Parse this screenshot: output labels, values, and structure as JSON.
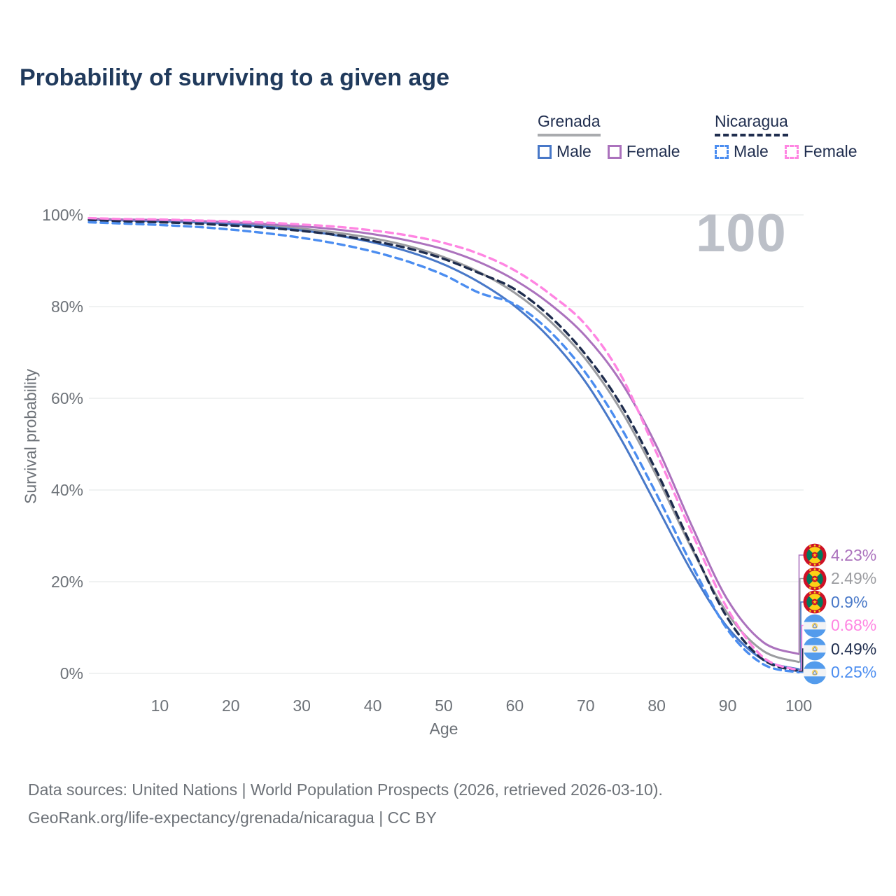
{
  "title": "Probability of surviving to a given age",
  "watermark": "100",
  "legend": {
    "groups": [
      {
        "country": "Grenada",
        "underline": "solid",
        "underline_color": "#a9abae",
        "items": [
          {
            "label": "Male",
            "color": "#4878c8",
            "dashed": false
          },
          {
            "label": "Female",
            "color": "#ab72bd",
            "dashed": false
          }
        ]
      },
      {
        "country": "Nicaragua",
        "underline": "dashed",
        "underline_color": "#1f2d4e",
        "items": [
          {
            "label": "Male",
            "color": "#4b8df0",
            "dashed": true
          },
          {
            "label": "Female",
            "color": "#ff85e2",
            "dashed": true
          }
        ]
      }
    ]
  },
  "y_axis": {
    "title": "Survival probability",
    "ticks": [
      {
        "label": "100%",
        "value": 100
      },
      {
        "label": "80%",
        "value": 80
      },
      {
        "label": "60%",
        "value": 60
      },
      {
        "label": "40%",
        "value": 40
      },
      {
        "label": "20%",
        "value": 20
      },
      {
        "label": "0%",
        "value": 0
      }
    ]
  },
  "x_axis": {
    "title": "Age",
    "ticks": [
      {
        "label": "10",
        "value": 10
      },
      {
        "label": "20",
        "value": 20
      },
      {
        "label": "30",
        "value": 30
      },
      {
        "label": "40",
        "value": 40
      },
      {
        "label": "50",
        "value": 50
      },
      {
        "label": "60",
        "value": 60
      },
      {
        "label": "70",
        "value": 70
      },
      {
        "label": "80",
        "value": 80
      },
      {
        "label": "90",
        "value": 90
      },
      {
        "label": "100",
        "value": 100
      }
    ]
  },
  "end_labels": [
    {
      "flag": "grenada",
      "series": "Grenada Female",
      "value": "4.23%",
      "numeric": 4.23,
      "color": "#ab72bd"
    },
    {
      "flag": "grenada",
      "series": "Grenada Both sexes",
      "value": "2.49%",
      "numeric": 2.49,
      "color": "#9b9ca0"
    },
    {
      "flag": "grenada",
      "series": "Grenada Male",
      "value": "0.9%",
      "numeric": 0.9,
      "color": "#4878c8"
    },
    {
      "flag": "nicaragua",
      "series": "Nicaragua Female",
      "value": "0.68%",
      "numeric": 0.68,
      "color": "#ff85e2"
    },
    {
      "flag": "nicaragua",
      "series": "Nicaragua Both sexes",
      "value": "0.49%",
      "numeric": 0.49,
      "color": "#1f2d4e"
    },
    {
      "flag": "nicaragua",
      "series": "Nicaragua Male",
      "value": "0.25%",
      "numeric": 0.25,
      "color": "#4b8df0"
    }
  ],
  "source": {
    "line1": "Data sources: United Nations | World Population Prospects (2026, retrieved 2026-03-10).",
    "line2": "GeoRank.org/life-expectancy/grenada/nicaragua | CC BY"
  },
  "colors": {
    "title_text": "#203a5c",
    "axis_text": "#6d7278",
    "legend_text": "#1f2d4e",
    "gridline": "#e8e9eb",
    "watermark": "#bcc0c8"
  },
  "chart_data": {
    "type": "line",
    "title": "Probability of surviving to a given age",
    "xlabel": "Age",
    "ylabel": "Survival probability",
    "x_range": [
      0,
      100
    ],
    "y_range_percent": [
      0,
      100
    ],
    "grid": "horizontal",
    "legend_position": "top-right",
    "x": [
      0,
      5,
      10,
      15,
      20,
      25,
      30,
      35,
      40,
      45,
      50,
      55,
      60,
      65,
      70,
      75,
      80,
      85,
      90,
      95,
      100
    ],
    "series": [
      {
        "name": "Grenada Female",
        "country": "Grenada",
        "sex": "Female",
        "color": "#ab72bd",
        "dash": "solid",
        "end_value": 4.23,
        "values": [
          99.2,
          99.0,
          98.9,
          98.7,
          98.4,
          98.0,
          97.5,
          96.8,
          95.8,
          94.4,
          92.5,
          89.7,
          85.8,
          80.5,
          73.5,
          63.5,
          49.5,
          32.0,
          16.0,
          6.8,
          4.23
        ]
      },
      {
        "name": "Grenada Both sexes",
        "country": "Grenada",
        "sex": "Both",
        "color": "#9b9ca0",
        "dash": "solid",
        "end_value": 2.49,
        "values": [
          99.1,
          98.9,
          98.8,
          98.6,
          98.2,
          97.7,
          97.0,
          96.1,
          94.9,
          93.2,
          90.8,
          87.5,
          83.0,
          76.8,
          68.5,
          57.3,
          43.0,
          27.0,
          13.0,
          4.9,
          2.49
        ]
      },
      {
        "name": "Grenada Male",
        "country": "Grenada",
        "sex": "Male",
        "color": "#4878c8",
        "dash": "solid",
        "end_value": 0.9,
        "values": [
          99.0,
          98.8,
          98.6,
          98.4,
          98.0,
          97.4,
          96.6,
          95.5,
          94.0,
          92.0,
          89.2,
          85.3,
          80.1,
          73.0,
          63.5,
          51.0,
          36.5,
          22.0,
          10.0,
          3.0,
          0.9
        ]
      },
      {
        "name": "Nicaragua Female",
        "country": "Nicaragua",
        "sex": "Female",
        "color": "#ff85e2",
        "dash": "dashed",
        "end_value": 0.68,
        "values": [
          99.3,
          99.1,
          99.0,
          98.8,
          98.6,
          98.3,
          97.9,
          97.4,
          96.6,
          95.5,
          93.9,
          91.5,
          87.9,
          82.7,
          76.0,
          64.9,
          48.0,
          30.5,
          14.0,
          3.5,
          0.68
        ]
      },
      {
        "name": "Nicaragua Both sexes",
        "country": "Nicaragua",
        "sex": "Both",
        "color": "#1f2d4e",
        "dash": "dashed",
        "end_value": 0.49,
        "values": [
          98.9,
          98.6,
          98.4,
          98.1,
          97.7,
          97.2,
          96.5,
          95.6,
          94.3,
          92.7,
          90.4,
          87.3,
          83.8,
          77.8,
          69.5,
          58.5,
          44.0,
          27.5,
          12.0,
          3.0,
          0.49
        ]
      },
      {
        "name": "Nicaragua Male",
        "country": "Nicaragua",
        "sex": "Male",
        "color": "#4b8df0",
        "dash": "dashed",
        "end_value": 0.25,
        "values": [
          98.4,
          98.1,
          97.8,
          97.4,
          96.8,
          96.0,
          95.0,
          93.7,
          92.0,
          89.8,
          86.9,
          83.0,
          80.5,
          74.5,
          65.5,
          53.5,
          39.0,
          23.5,
          9.5,
          2.0,
          0.25
        ]
      }
    ]
  }
}
